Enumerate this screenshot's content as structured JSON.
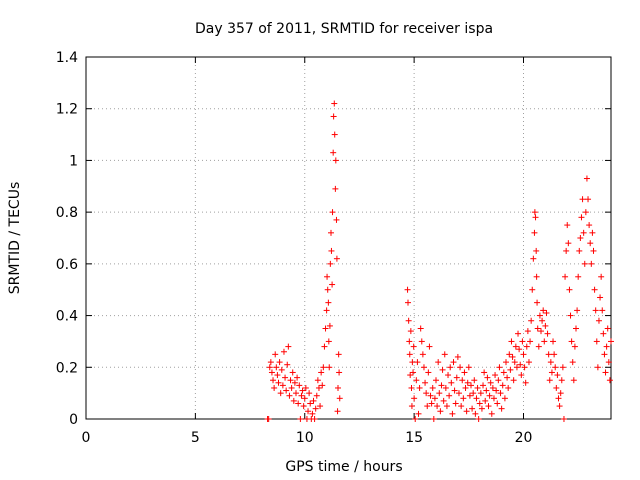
{
  "chart_data": {
    "type": "scatter",
    "title": "Day 357 of 2011, SRMTID for receiver ispa",
    "xlabel": "GPS time / hours",
    "ylabel": "SRMTID / TECUs",
    "xlim": [
      0,
      24
    ],
    "ylim": [
      0,
      1.4
    ],
    "x_ticks": [
      0,
      5,
      10,
      15,
      20
    ],
    "x_tick_labels": [
      "0",
      "5",
      "10",
      "15",
      "20"
    ],
    "y_ticks": [
      0,
      0.2,
      0.4,
      0.6,
      0.8,
      1,
      1.2,
      1.4
    ],
    "y_tick_labels": [
      "0",
      "0.2",
      "0.4",
      "0.6",
      "0.8",
      "1",
      "1.2",
      "1.4"
    ],
    "grid": true,
    "marker": "+",
    "color": "#ff0000",
    "series": [
      {
        "name": "ispa",
        "points": [
          [
            8.3,
            0.0
          ],
          [
            8.35,
            0.0
          ],
          [
            8.4,
            0.2
          ],
          [
            8.45,
            0.22
          ],
          [
            8.5,
            0.18
          ],
          [
            8.55,
            0.15
          ],
          [
            8.6,
            0.12
          ],
          [
            8.65,
            0.25
          ],
          [
            8.7,
            0.2
          ],
          [
            8.75,
            0.17
          ],
          [
            8.8,
            0.14
          ],
          [
            8.85,
            0.22
          ],
          [
            8.9,
            0.1
          ],
          [
            8.95,
            0.19
          ],
          [
            9.0,
            0.13
          ],
          [
            9.05,
            0.26
          ],
          [
            9.1,
            0.16
          ],
          [
            9.15,
            0.11
          ],
          [
            9.2,
            0.21
          ],
          [
            9.25,
            0.28
          ],
          [
            9.3,
            0.09
          ],
          [
            9.35,
            0.15
          ],
          [
            9.4,
            0.12
          ],
          [
            9.45,
            0.18
          ],
          [
            9.5,
            0.07
          ],
          [
            9.55,
            0.14
          ],
          [
            9.6,
            0.1
          ],
          [
            9.65,
            0.16
          ],
          [
            9.7,
            0.06
          ],
          [
            9.75,
            0.13
          ],
          [
            9.8,
            0.0
          ],
          [
            9.85,
            0.09
          ],
          [
            9.9,
            0.11
          ],
          [
            9.95,
            0.05
          ],
          [
            10.0,
            0.08
          ],
          [
            10.05,
            0.12
          ],
          [
            10.1,
            0.0
          ],
          [
            10.15,
            0.03
          ],
          [
            10.2,
            0.1
          ],
          [
            10.25,
            0.06
          ],
          [
            10.3,
            0.0
          ],
          [
            10.35,
            0.02
          ],
          [
            10.4,
            0.07
          ],
          [
            10.45,
            0.0
          ],
          [
            10.5,
            0.04
          ],
          [
            10.55,
            0.09
          ],
          [
            10.6,
            0.15
          ],
          [
            10.65,
            0.12
          ],
          [
            10.7,
            0.05
          ],
          [
            10.75,
            0.18
          ],
          [
            10.8,
            0.13
          ],
          [
            10.85,
            0.2
          ],
          [
            10.9,
            0.28
          ],
          [
            10.95,
            0.35
          ],
          [
            11.0,
            0.42
          ],
          [
            11.02,
            0.55
          ],
          [
            11.05,
            0.5
          ],
          [
            11.08,
            0.45
          ],
          [
            11.1,
            0.3
          ],
          [
            11.12,
            0.2
          ],
          [
            11.15,
            0.36
          ],
          [
            11.17,
            0.6
          ],
          [
            11.2,
            0.72
          ],
          [
            11.22,
            0.65
          ],
          [
            11.25,
            0.52
          ],
          [
            11.27,
            0.8
          ],
          [
            11.3,
            1.03
          ],
          [
            11.32,
            1.17
          ],
          [
            11.35,
            1.22
          ],
          [
            11.37,
            1.1
          ],
          [
            11.4,
            0.89
          ],
          [
            11.42,
            1.0
          ],
          [
            11.45,
            0.77
          ],
          [
            11.47,
            0.62
          ],
          [
            11.5,
            0.03
          ],
          [
            11.52,
            0.12
          ],
          [
            11.55,
            0.25
          ],
          [
            11.57,
            0.18
          ],
          [
            11.6,
            0.08
          ],
          [
            14.7,
            0.5
          ],
          [
            14.72,
            0.45
          ],
          [
            14.75,
            0.38
          ],
          [
            14.78,
            0.3
          ],
          [
            14.8,
            0.25
          ],
          [
            14.82,
            0.17
          ],
          [
            14.85,
            0.34
          ],
          [
            14.88,
            0.12
          ],
          [
            14.9,
            0.05
          ],
          [
            14.92,
            0.22
          ],
          [
            14.95,
            0.18
          ],
          [
            14.98,
            0.28
          ],
          [
            15.0,
            0.08
          ],
          [
            15.05,
            0.0
          ],
          [
            15.1,
            0.15
          ],
          [
            15.15,
            0.22
          ],
          [
            15.2,
            0.02
          ],
          [
            15.25,
            0.12
          ],
          [
            15.3,
            0.35
          ],
          [
            15.35,
            0.3
          ],
          [
            15.4,
            0.25
          ],
          [
            15.45,
            0.2
          ],
          [
            15.5,
            0.14
          ],
          [
            15.55,
            0.1
          ],
          [
            15.6,
            0.05
          ],
          [
            15.65,
            0.18
          ],
          [
            15.7,
            0.28
          ],
          [
            15.75,
            0.09
          ],
          [
            15.8,
            0.06
          ],
          [
            15.85,
            0.12
          ],
          [
            15.9,
            0.0
          ],
          [
            15.95,
            0.08
          ],
          [
            16.0,
            0.15
          ],
          [
            16.05,
            0.05
          ],
          [
            16.1,
            0.22
          ],
          [
            16.15,
            0.1
          ],
          [
            16.2,
            0.03
          ],
          [
            16.25,
            0.13
          ],
          [
            16.3,
            0.19
          ],
          [
            16.35,
            0.07
          ],
          [
            16.4,
            0.25
          ],
          [
            16.45,
            0.12
          ],
          [
            16.5,
            0.05
          ],
          [
            16.55,
            0.17
          ],
          [
            16.6,
            0.09
          ],
          [
            16.65,
            0.2
          ],
          [
            16.7,
            0.14
          ],
          [
            16.75,
            0.02
          ],
          [
            16.8,
            0.22
          ],
          [
            16.85,
            0.11
          ],
          [
            16.9,
            0.06
          ],
          [
            16.95,
            0.16
          ],
          [
            17.0,
            0.24
          ],
          [
            17.05,
            0.1
          ],
          [
            17.1,
            0.2
          ],
          [
            17.15,
            0.05
          ],
          [
            17.2,
            0.15
          ],
          [
            17.25,
            0.08
          ],
          [
            17.3,
            0.18
          ],
          [
            17.35,
            0.12
          ],
          [
            17.4,
            0.03
          ],
          [
            17.45,
            0.14
          ],
          [
            17.5,
            0.2
          ],
          [
            17.55,
            0.09
          ],
          [
            17.6,
            0.13
          ],
          [
            17.65,
            0.04
          ],
          [
            17.7,
            0.1
          ],
          [
            17.75,
            0.15
          ],
          [
            17.8,
            0.02
          ],
          [
            17.85,
            0.08
          ],
          [
            17.9,
            0.12
          ],
          [
            17.95,
            0.0
          ],
          [
            18.0,
            0.06
          ],
          [
            18.05,
            0.1
          ],
          [
            18.1,
            0.04
          ],
          [
            18.15,
            0.13
          ],
          [
            18.2,
            0.18
          ],
          [
            18.25,
            0.07
          ],
          [
            18.3,
            0.11
          ],
          [
            18.35,
            0.16
          ],
          [
            18.4,
            0.05
          ],
          [
            18.45,
            0.09
          ],
          [
            18.5,
            0.14
          ],
          [
            18.55,
            0.02
          ],
          [
            18.6,
            0.12
          ],
          [
            18.65,
            0.08
          ],
          [
            18.7,
            0.17
          ],
          [
            18.75,
            0.11
          ],
          [
            18.8,
            0.06
          ],
          [
            18.85,
            0.15
          ],
          [
            18.9,
            0.2
          ],
          [
            18.95,
            0.1
          ],
          [
            19.0,
            0.04
          ],
          [
            19.05,
            0.13
          ],
          [
            19.1,
            0.18
          ],
          [
            19.15,
            0.08
          ],
          [
            19.2,
            0.22
          ],
          [
            19.25,
            0.16
          ],
          [
            19.3,
            0.12
          ],
          [
            19.35,
            0.25
          ],
          [
            19.4,
            0.19
          ],
          [
            19.45,
            0.3
          ],
          [
            19.5,
            0.24
          ],
          [
            19.55,
            0.15
          ],
          [
            19.6,
            0.22
          ],
          [
            19.65,
            0.28
          ],
          [
            19.7,
            0.2
          ],
          [
            19.75,
            0.33
          ],
          [
            19.8,
            0.27
          ],
          [
            19.85,
            0.21
          ],
          [
            19.9,
            0.17
          ],
          [
            19.95,
            0.3
          ],
          [
            20.0,
            0.25
          ],
          [
            20.05,
            0.2
          ],
          [
            20.1,
            0.14
          ],
          [
            20.15,
            0.28
          ],
          [
            20.2,
            0.34
          ],
          [
            20.25,
            0.22
          ],
          [
            20.3,
            0.3
          ],
          [
            20.35,
            0.38
          ],
          [
            20.4,
            0.5
          ],
          [
            20.45,
            0.62
          ],
          [
            20.5,
            0.72
          ],
          [
            20.52,
            0.8
          ],
          [
            20.55,
            0.78
          ],
          [
            20.58,
            0.65
          ],
          [
            20.6,
            0.55
          ],
          [
            20.62,
            0.45
          ],
          [
            20.65,
            0.35
          ],
          [
            20.7,
            0.28
          ],
          [
            20.75,
            0.4
          ],
          [
            20.8,
            0.34
          ],
          [
            20.85,
            0.38
          ],
          [
            20.9,
            0.42
          ],
          [
            20.95,
            0.3
          ],
          [
            21.0,
            0.36
          ],
          [
            21.05,
            0.41
          ],
          [
            21.1,
            0.33
          ],
          [
            21.15,
            0.25
          ],
          [
            21.2,
            0.15
          ],
          [
            21.25,
            0.22
          ],
          [
            21.3,
            0.18
          ],
          [
            21.35,
            0.3
          ],
          [
            21.4,
            0.25
          ],
          [
            21.45,
            0.2
          ],
          [
            21.5,
            0.12
          ],
          [
            21.55,
            0.17
          ],
          [
            21.6,
            0.08
          ],
          [
            21.65,
            0.05
          ],
          [
            21.7,
            0.1
          ],
          [
            21.75,
            0.15
          ],
          [
            21.8,
            0.2
          ],
          [
            21.85,
            0.0
          ],
          [
            21.9,
            0.55
          ],
          [
            21.95,
            0.65
          ],
          [
            22.0,
            0.75
          ],
          [
            22.05,
            0.68
          ],
          [
            22.1,
            0.5
          ],
          [
            22.15,
            0.4
          ],
          [
            22.2,
            0.3
          ],
          [
            22.25,
            0.22
          ],
          [
            22.3,
            0.15
          ],
          [
            22.35,
            0.28
          ],
          [
            22.4,
            0.35
          ],
          [
            22.45,
            0.42
          ],
          [
            22.5,
            0.55
          ],
          [
            22.55,
            0.65
          ],
          [
            22.6,
            0.7
          ],
          [
            22.65,
            0.78
          ],
          [
            22.7,
            0.85
          ],
          [
            22.75,
            0.72
          ],
          [
            22.8,
            0.6
          ],
          [
            22.85,
            0.8
          ],
          [
            22.9,
            0.93
          ],
          [
            22.95,
            0.85
          ],
          [
            23.0,
            0.75
          ],
          [
            23.05,
            0.68
          ],
          [
            23.1,
            0.6
          ],
          [
            23.15,
            0.72
          ],
          [
            23.2,
            0.65
          ],
          [
            23.25,
            0.5
          ],
          [
            23.3,
            0.42
          ],
          [
            23.35,
            0.3
          ],
          [
            23.4,
            0.2
          ],
          [
            23.45,
            0.38
          ],
          [
            23.5,
            0.47
          ],
          [
            23.55,
            0.55
          ],
          [
            23.6,
            0.42
          ],
          [
            23.65,
            0.33
          ],
          [
            23.7,
            0.25
          ],
          [
            23.75,
            0.18
          ],
          [
            23.8,
            0.28
          ],
          [
            23.85,
            0.35
          ],
          [
            23.9,
            0.22
          ],
          [
            23.95,
            0.15
          ],
          [
            24.0,
            0.3
          ]
        ]
      }
    ]
  }
}
